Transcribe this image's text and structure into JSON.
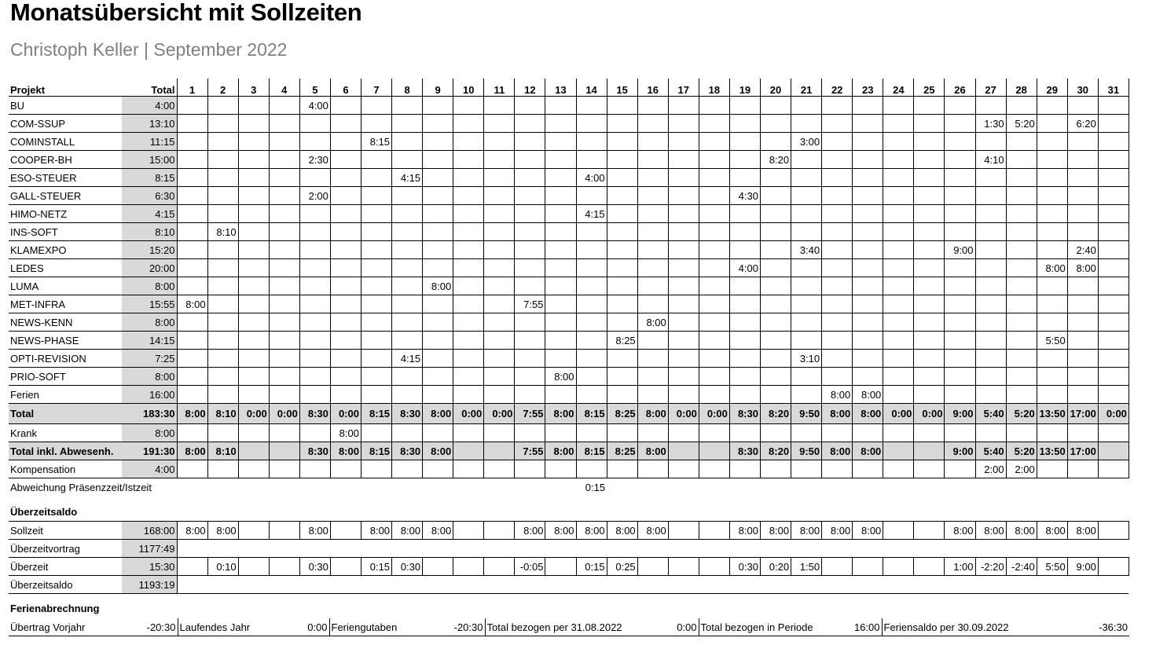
{
  "title": "Monatsübersicht mit Sollzeiten",
  "subtitle": "Christoph Keller | September 2022",
  "header": {
    "project": "Projekt",
    "total": "Total",
    "days": [
      "1",
      "2",
      "3",
      "4",
      "5",
      "6",
      "7",
      "8",
      "9",
      "10",
      "11",
      "12",
      "13",
      "14",
      "15",
      "16",
      "17",
      "18",
      "19",
      "20",
      "21",
      "22",
      "23",
      "24",
      "25",
      "26",
      "27",
      "28",
      "29",
      "30",
      "31"
    ]
  },
  "projects": [
    {
      "name": "BU",
      "total": "4:00",
      "days": {
        "5": "4:00"
      }
    },
    {
      "name": "COM-SSUP",
      "total": "13:10",
      "days": {
        "27": "1:30",
        "28": "5:20",
        "30": "6:20"
      }
    },
    {
      "name": "COMINSTALL",
      "total": "11:15",
      "days": {
        "7": "8:15",
        "21": "3:00"
      }
    },
    {
      "name": "COOPER-BH",
      "total": "15:00",
      "days": {
        "5": "2:30",
        "20": "8:20",
        "27": "4:10"
      }
    },
    {
      "name": "ESO-STEUER",
      "total": "8:15",
      "days": {
        "8": "4:15",
        "14": "4:00"
      }
    },
    {
      "name": "GALL-STEUER",
      "total": "6:30",
      "days": {
        "5": "2:00",
        "19": "4:30"
      }
    },
    {
      "name": "HIMO-NETZ",
      "total": "4:15",
      "days": {
        "14": "4:15"
      }
    },
    {
      "name": "INS-SOFT",
      "total": "8:10",
      "days": {
        "2": "8:10"
      }
    },
    {
      "name": "KLAMEXPO",
      "total": "15:20",
      "days": {
        "21": "3:40",
        "26": "9:00",
        "30": "2:40"
      }
    },
    {
      "name": "LEDES",
      "total": "20:00",
      "days": {
        "19": "4:00",
        "29": "8:00",
        "30": "8:00"
      }
    },
    {
      "name": "LUMA",
      "total": "8:00",
      "days": {
        "9": "8:00"
      }
    },
    {
      "name": "MET-INFRA",
      "total": "15:55",
      "days": {
        "1": "8:00",
        "12": "7:55"
      }
    },
    {
      "name": "NEWS-KENN",
      "total": "8:00",
      "days": {
        "16": "8:00"
      }
    },
    {
      "name": "NEWS-PHASE",
      "total": "14:15",
      "days": {
        "15": "8:25",
        "29": "5:50"
      }
    },
    {
      "name": "OPTI-REVISION",
      "total": "7:25",
      "days": {
        "8": "4:15",
        "21": "3:10"
      }
    },
    {
      "name": "PRIO-SOFT",
      "total": "8:00",
      "days": {
        "13": "8:00"
      }
    },
    {
      "name": "Ferien",
      "total": "16:00",
      "days": {
        "22": "8:00",
        "23": "8:00"
      }
    }
  ],
  "total_row": {
    "name": "Total",
    "total": "183:30",
    "days": {
      "1": "8:00",
      "2": "8:10",
      "3": "0:00",
      "4": "0:00",
      "5": "8:30",
      "6": "0:00",
      "7": "8:15",
      "8": "8:30",
      "9": "8:00",
      "10": "0:00",
      "11": "0:00",
      "12": "7:55",
      "13": "8:00",
      "14": "8:15",
      "15": "8:25",
      "16": "8:00",
      "17": "0:00",
      "18": "0:00",
      "19": "8:30",
      "20": "8:20",
      "21": "9:50",
      "22": "8:00",
      "23": "8:00",
      "24": "0:00",
      "25": "0:00",
      "26": "9:00",
      "27": "5:40",
      "28": "5:20",
      "29": "13:50",
      "30": "17:00",
      "31": "0:00"
    }
  },
  "krank": {
    "name": "Krank",
    "total": "8:00",
    "days": {
      "6": "8:00"
    }
  },
  "total_abw": {
    "name": "Total inkl. Abwesenh.",
    "total": "191:30",
    "days": {
      "1": "8:00",
      "2": "8:10",
      "5": "8:30",
      "6": "8:00",
      "7": "8:15",
      "8": "8:30",
      "9": "8:00",
      "12": "7:55",
      "13": "8:00",
      "14": "8:15",
      "15": "8:25",
      "16": "8:00",
      "19": "8:30",
      "20": "8:20",
      "21": "9:50",
      "22": "8:00",
      "23": "8:00",
      "26": "9:00",
      "27": "5:40",
      "28": "5:20",
      "29": "13:50",
      "30": "17:00"
    }
  },
  "kompensation": {
    "name": "Kompensation",
    "total": "4:00",
    "days": {
      "27": "2:00",
      "28": "2:00"
    }
  },
  "abweichung": {
    "name": "Abweichung Präsenzzeit/Istzeit",
    "days": {
      "14": "0:15"
    }
  },
  "ueberzeit_title": "Überzeitsaldo",
  "ueberzeit_rows": [
    {
      "name": "Sollzeit",
      "total": "168:00",
      "days": {
        "1": "8:00",
        "2": "8:00",
        "5": "8:00",
        "7": "8:00",
        "8": "8:00",
        "9": "8:00",
        "12": "8:00",
        "13": "8:00",
        "14": "8:00",
        "15": "8:00",
        "16": "8:00",
        "19": "8:00",
        "20": "8:00",
        "21": "8:00",
        "22": "8:00",
        "23": "8:00",
        "26": "8:00",
        "27": "8:00",
        "28": "8:00",
        "29": "8:00",
        "30": "8:00"
      }
    },
    {
      "name": "Überzeitvortrag",
      "total": "1177:49",
      "days": {}
    },
    {
      "name": "Überzeit",
      "total": "15:30",
      "days": {
        "2": "0:10",
        "5": "0:30",
        "7": "0:15",
        "8": "0:30",
        "12": "-0:05",
        "14": "0:15",
        "15": "0:25",
        "19": "0:30",
        "20": "0:20",
        "21": "1:50",
        "26": "1:00",
        "27": "-2:20",
        "28": "-2:40",
        "29": "5:50",
        "30": "9:00"
      }
    },
    {
      "name": "Überzeitsaldo",
      "total": "1193:19",
      "days": {}
    }
  ],
  "ferien_title": "Ferienabrechnung",
  "ferien": [
    {
      "label": "Übertrag Vorjahr",
      "value": "-20:30"
    },
    {
      "label": "Laufendes Jahr",
      "value": "0:00"
    },
    {
      "label": "Feriengutaben",
      "value": "-20:30"
    },
    {
      "label": "Total bezogen per 31.08.2022",
      "value": "0:00"
    },
    {
      "label": "Total bezogen in Periode",
      "value": "16:00"
    },
    {
      "label": "Feriensaldo per 30.09.2022",
      "value": "-36:30"
    }
  ]
}
